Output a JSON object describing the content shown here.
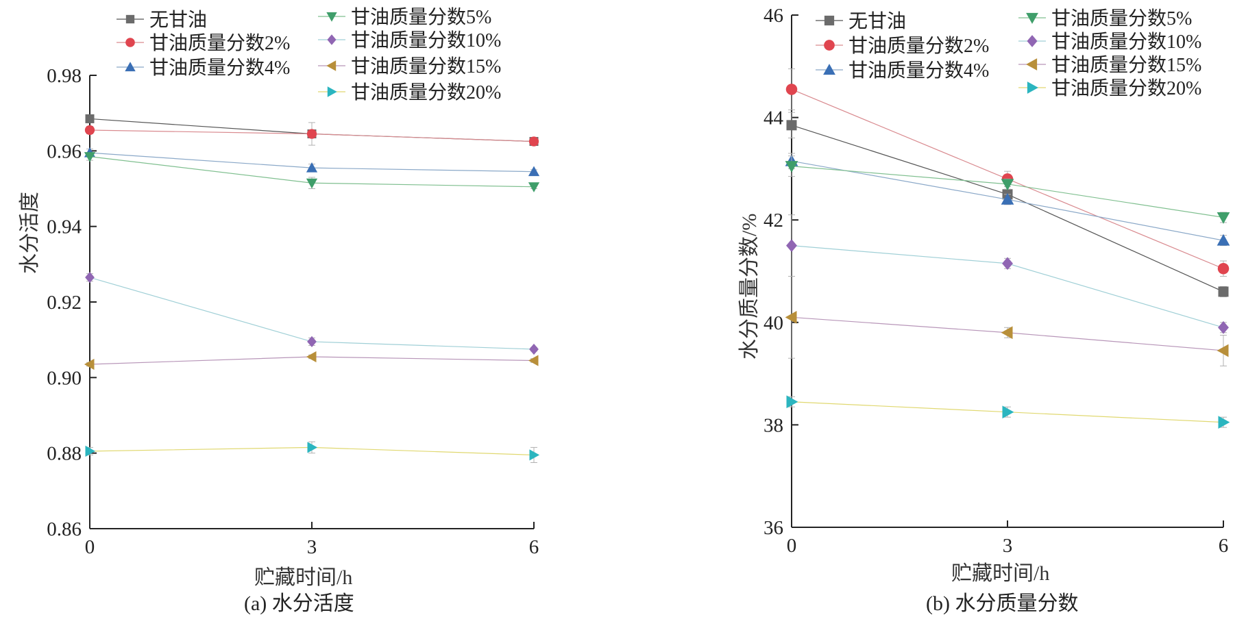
{
  "chart_data": [
    {
      "type": "line",
      "caption": "(a) 水分活度",
      "xlabel": "贮藏时间/h",
      "ylabel": "水分活度",
      "x": [
        0,
        3,
        6
      ],
      "xticks": [
        "0",
        "3",
        "6"
      ],
      "ylim": [
        0.86,
        0.98
      ],
      "yticks": [
        "0.86",
        "0.88",
        "0.90",
        "0.92",
        "0.94",
        "0.96",
        "0.98"
      ],
      "grid": false,
      "legend_position": "top",
      "series": [
        {
          "name": "无甘油",
          "values": [
            0.9685,
            0.9645,
            0.9625
          ],
          "color": "#6b6b6b",
          "marker": "square",
          "errors": [
            0.001,
            0.001,
            0.0005
          ]
        },
        {
          "name": "甘油质量分数2%",
          "values": [
            0.9655,
            0.9645,
            0.9625
          ],
          "color": "#e0454f",
          "marker": "circle",
          "errors": [
            0.001,
            0.003,
            0.0005
          ]
        },
        {
          "name": "甘油质量分数4%",
          "values": [
            0.9595,
            0.9555,
            0.9545
          ],
          "color": "#3a6fb5",
          "marker": "triangle-up",
          "errors": [
            0.001,
            0.001,
            0.0005
          ]
        },
        {
          "name": "甘油质量分数5%",
          "values": [
            0.9585,
            0.9515,
            0.9505
          ],
          "color": "#3f9e6a",
          "marker": "triangle-down",
          "errors": [
            0.001,
            0.0015,
            0.0005
          ]
        },
        {
          "name": "甘油质量分数10%",
          "values": [
            0.9265,
            0.9095,
            0.9075
          ],
          "color": "#9066b3",
          "marker": "diamond",
          "errors": [
            0.001,
            0.001,
            0.0005
          ]
        },
        {
          "name": "甘油质量分数15%",
          "values": [
            0.9035,
            0.9055,
            0.9045
          ],
          "color": "#b88f3a",
          "marker": "triangle-left",
          "errors": [
            0.0005,
            0.0005,
            0.0005
          ]
        },
        {
          "name": "甘油质量分数20%",
          "values": [
            0.8805,
            0.8815,
            0.8795
          ],
          "color": "#2bb5bf",
          "marker": "triangle-right",
          "errors": [
            0.001,
            0.0015,
            0.002
          ]
        }
      ],
      "line_colors": [
        "#555555",
        "#d98a8f",
        "#8aa8c8",
        "#7fbf8f",
        "#9fcfd6",
        "#b795b8",
        "#e0d870"
      ]
    },
    {
      "type": "line",
      "caption": "(b) 水分质量分数",
      "xlabel": "贮藏时间/h",
      "ylabel": "水分质量分数/%",
      "x": [
        0,
        3,
        6
      ],
      "xticks": [
        "0",
        "3",
        "6"
      ],
      "ylim": [
        36,
        46
      ],
      "yticks": [
        "36",
        "38",
        "40",
        "42",
        "44",
        "46"
      ],
      "grid": false,
      "legend_position": "top",
      "series": [
        {
          "name": "无甘油",
          "values": [
            43.85,
            42.5,
            40.6
          ],
          "color": "#6b6b6b",
          "marker": "square",
          "errors": [
            0.25,
            0.1,
            0.1
          ]
        },
        {
          "name": "甘油质量分数2%",
          "values": [
            44.55,
            42.8,
            41.05
          ],
          "color": "#e0454f",
          "marker": "circle",
          "errors": [
            0.4,
            0.15,
            0.15
          ]
        },
        {
          "name": "甘油质量分数4%",
          "values": [
            43.15,
            42.4,
            41.6
          ],
          "color": "#3a6fb5",
          "marker": "triangle-up",
          "errors": [
            0.15,
            0.1,
            0.1
          ]
        },
        {
          "name": "甘油质量分数5%",
          "values": [
            43.05,
            42.7,
            42.05
          ],
          "color": "#3f9e6a",
          "marker": "triangle-down",
          "errors": [
            0.2,
            0.1,
            0.1
          ]
        },
        {
          "name": "甘油质量分数10%",
          "values": [
            41.5,
            41.15,
            39.9
          ],
          "color": "#9066b3",
          "marker": "diamond",
          "errors": [
            0.6,
            0.1,
            0.1
          ]
        },
        {
          "name": "甘油质量分数15%",
          "values": [
            40.1,
            39.8,
            39.45
          ],
          "color": "#b88f3a",
          "marker": "triangle-left",
          "errors": [
            0.8,
            0.1,
            0.3
          ]
        },
        {
          "name": "甘油质量分数20%",
          "values": [
            38.45,
            38.25,
            38.05
          ],
          "color": "#2bb5bf",
          "marker": "triangle-right",
          "errors": [
            0.1,
            0.1,
            0.1
          ]
        }
      ],
      "line_colors": [
        "#555555",
        "#d98a8f",
        "#8aa8c8",
        "#7fbf8f",
        "#9fcfd6",
        "#b795b8",
        "#e0d870"
      ]
    }
  ]
}
